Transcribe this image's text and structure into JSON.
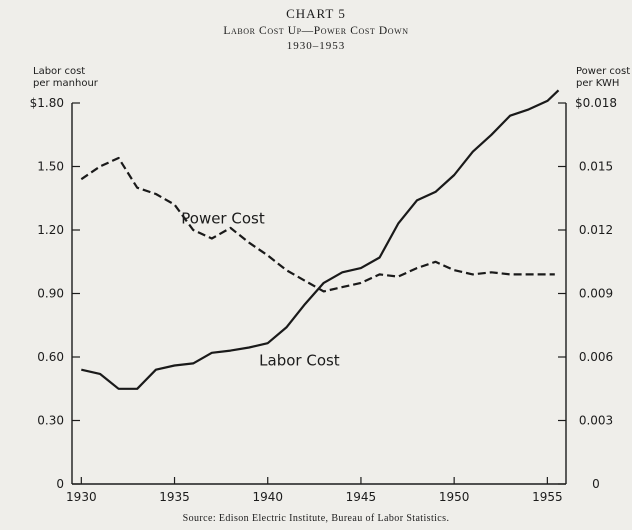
{
  "chart_data": {
    "type": "line",
    "chart_number": "CHART 5",
    "title": "Labor Cost Up—Power Cost Down",
    "years_range": "1930–1953",
    "source": "Source: Edison Electric Institute, Bureau of Labor Statistics.",
    "left_axis": {
      "label_line1": "Labor cost",
      "label_line2": "per manhour",
      "ylim": [
        0,
        1.8
      ],
      "ticks": [
        {
          "value": 0,
          "label": "0"
        },
        {
          "value": 0.3,
          "label": "0.30"
        },
        {
          "value": 0.6,
          "label": "0.60"
        },
        {
          "value": 0.9,
          "label": "0.90"
        },
        {
          "value": 1.2,
          "label": "1.20"
        },
        {
          "value": 1.5,
          "label": "1.50"
        },
        {
          "value": 1.8,
          "label": "$1.80"
        }
      ]
    },
    "right_axis": {
      "label_line1": "Power cost",
      "label_line2": "per KWH",
      "ylim": [
        0,
        0.018
      ],
      "ticks": [
        {
          "value": 0,
          "label": "0"
        },
        {
          "value": 0.003,
          "label": "0.003"
        },
        {
          "value": 0.006,
          "label": "0.006"
        },
        {
          "value": 0.009,
          "label": "0.009"
        },
        {
          "value": 0.012,
          "label": "0.012"
        },
        {
          "value": 0.015,
          "label": "0.015"
        },
        {
          "value": 0.018,
          "label": "$0.018"
        }
      ]
    },
    "x_axis": {
      "xlim": [
        1929.5,
        1956
      ],
      "ticks": [
        {
          "value": 1930,
          "label": "1930"
        },
        {
          "value": 1935,
          "label": "1935"
        },
        {
          "value": 1940,
          "label": "1940"
        },
        {
          "value": 1945,
          "label": "1945"
        },
        {
          "value": 1950,
          "label": "1950"
        },
        {
          "value": 1955,
          "label": "1955"
        }
      ]
    },
    "series": [
      {
        "name": "Labor Cost",
        "axis": "left",
        "style": "solid",
        "label_year": 1941.7,
        "label_value": 0.56,
        "x": [
          1930,
          1931,
          1932,
          1933,
          1934,
          1935,
          1936,
          1937,
          1938,
          1939,
          1940,
          1941,
          1942,
          1943,
          1944,
          1945,
          1946,
          1947,
          1948,
          1949,
          1950,
          1951,
          1952,
          1953,
          1954,
          1955,
          1955.6
        ],
        "values": [
          0.54,
          0.52,
          0.45,
          0.45,
          0.54,
          0.56,
          0.57,
          0.62,
          0.63,
          0.645,
          0.665,
          0.74,
          0.85,
          0.95,
          1.0,
          1.02,
          1.07,
          1.23,
          1.34,
          1.38,
          1.46,
          1.57,
          1.65,
          1.74,
          1.77,
          1.81,
          1.86
        ]
      },
      {
        "name": "Power Cost",
        "axis": "right",
        "style": "dashed",
        "label_year": 1937.6,
        "label_value": 0.0123,
        "x": [
          1930,
          1931,
          1932,
          1933,
          1934,
          1935,
          1936,
          1937,
          1938,
          1939,
          1940,
          1941,
          1942,
          1943,
          1944,
          1945,
          1946,
          1947,
          1948,
          1949,
          1950,
          1951,
          1952,
          1953,
          1954,
          1955.4
        ],
        "values": [
          0.0144,
          0.015,
          0.0154,
          0.014,
          0.0137,
          0.0132,
          0.012,
          0.0116,
          0.0121,
          0.0114,
          0.0108,
          0.0101,
          0.0096,
          0.0091,
          0.0093,
          0.0095,
          0.0099,
          0.0098,
          0.0102,
          0.0105,
          0.0101,
          0.0099,
          0.01,
          0.0099,
          0.0099,
          0.0099
        ]
      }
    ],
    "grid": false,
    "legend": "inline labels"
  }
}
